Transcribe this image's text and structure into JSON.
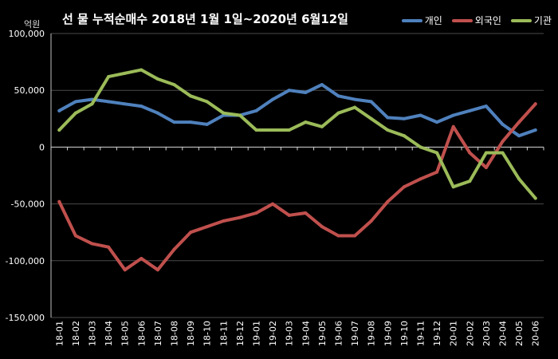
{
  "title": "선 물 누적순매수 2018년 1월 1일~2020년 6월12일",
  "unit_label": "억원",
  "chart_data": {
    "type": "line",
    "title": "선 물 누적순매수 2018년 1월 1일~2020년 6월12일",
    "ylabel": "억원",
    "ylim": [
      -150000,
      100000
    ],
    "yticks": [
      100000,
      50000,
      0,
      -50000,
      -100000,
      -150000
    ],
    "ytick_labels": [
      "100,000",
      "50,000",
      "0",
      "-50,000",
      "-100,000",
      "-150,000"
    ],
    "grid": true,
    "legend_position": "top-right",
    "categories": [
      "18-01",
      "18-02",
      "18-03",
      "18-04",
      "18-05",
      "18-06",
      "18-07",
      "18-08",
      "18-09",
      "18-10",
      "18-11",
      "18-12",
      "19-01",
      "19-02",
      "19-03",
      "19-04",
      "19-05",
      "19-06",
      "19-07",
      "19-08",
      "19-09",
      "19-10",
      "19-11",
      "19-12",
      "20-01",
      "20-02",
      "20-03",
      "20-04",
      "20-05",
      "20-06"
    ],
    "series": [
      {
        "name": "개인",
        "color": "#4f81bd",
        "values": [
          32000,
          40000,
          42000,
          40000,
          38000,
          36000,
          30000,
          22000,
          22000,
          20000,
          28000,
          28000,
          32000,
          42000,
          50000,
          48000,
          55000,
          45000,
          42000,
          40000,
          26000,
          25000,
          28000,
          22000,
          28000,
          32000,
          36000,
          20000,
          10000,
          15000
        ]
      },
      {
        "name": "외국인",
        "color": "#c0504d",
        "values": [
          -48000,
          -78000,
          -85000,
          -88000,
          -108000,
          -98000,
          -108000,
          -90000,
          -75000,
          -70000,
          -65000,
          -62000,
          -58000,
          -50000,
          -60000,
          -58000,
          -70000,
          -78000,
          -78000,
          -65000,
          -48000,
          -35000,
          -28000,
          -22000,
          18000,
          -5000,
          -18000,
          5000,
          22000,
          38000
        ]
      },
      {
        "name": "기관",
        "color": "#9bbb59",
        "values": [
          15000,
          30000,
          38000,
          62000,
          65000,
          68000,
          60000,
          55000,
          45000,
          40000,
          30000,
          28000,
          15000,
          15000,
          15000,
          22000,
          18000,
          30000,
          35000,
          25000,
          15000,
          10000,
          0,
          -5000,
          -35000,
          -30000,
          -5000,
          -5000,
          -28000,
          -45000
        ]
      }
    ]
  }
}
